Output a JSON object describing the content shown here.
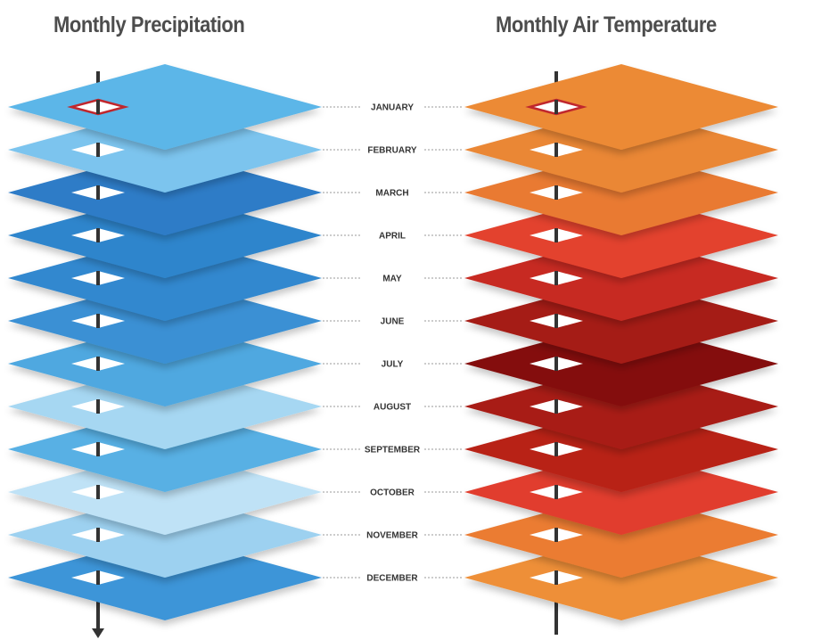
{
  "titles": {
    "left": "Monthly Precipitation",
    "right": "Monthly Air Temperature"
  },
  "months": [
    {
      "label": "JANUARY",
      "precip_color": "#5cb6e8",
      "temp_color": "#ec8a35",
      "highlighted": true
    },
    {
      "label": "FEBRUARY",
      "precip_color": "#7cc4ee",
      "temp_color": "#ea8736",
      "highlighted": false
    },
    {
      "label": "MARCH",
      "precip_color": "#2e7cc7",
      "temp_color": "#e97a32",
      "highlighted": false
    },
    {
      "label": "APRIL",
      "precip_color": "#2f85cc",
      "temp_color": "#e3432f",
      "highlighted": false
    },
    {
      "label": "MAY",
      "precip_color": "#3088cf",
      "temp_color": "#c72b23",
      "highlighted": false
    },
    {
      "label": "JUNE",
      "precip_color": "#3a90d4",
      "temp_color": "#a51e17",
      "highlighted": false
    },
    {
      "label": "JULY",
      "precip_color": "#4fa8e0",
      "temp_color": "#84100c",
      "highlighted": false
    },
    {
      "label": "AUGUST",
      "precip_color": "#a6d7f2",
      "temp_color": "#a81d16",
      "highlighted": false
    },
    {
      "label": "SEPTEMBER",
      "precip_color": "#58b0e4",
      "temp_color": "#b82219",
      "highlighted": false
    },
    {
      "label": "OCTOBER",
      "precip_color": "#bfe2f6",
      "temp_color": "#e13d2d",
      "highlighted": false
    },
    {
      "label": "NOVEMBER",
      "precip_color": "#9dd1f0",
      "temp_color": "#eb7b33",
      "highlighted": false
    },
    {
      "label": "DECEMBER",
      "precip_color": "#3e95d8",
      "temp_color": "#ee8f38",
      "highlighted": false
    }
  ],
  "colors": {
    "axis": "#333333",
    "highlight_outline": "#c0272d",
    "dotted_line": "#999999"
  }
}
